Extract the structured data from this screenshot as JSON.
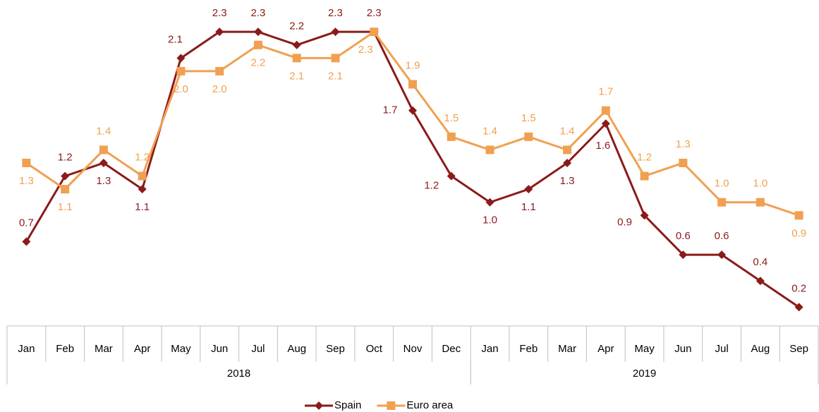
{
  "chart_data": {
    "type": "line",
    "categories": [
      "Jan",
      "Feb",
      "Mar",
      "Apr",
      "May",
      "Jun",
      "Jul",
      "Aug",
      "Sep",
      "Oct",
      "Nov",
      "Dec",
      "Jan",
      "Feb",
      "Mar",
      "Apr",
      "May",
      "Jun",
      "Jul",
      "Aug",
      "Sep"
    ],
    "groups": [
      {
        "label": "2018",
        "span": 12
      },
      {
        "label": "2019",
        "span": 9
      }
    ],
    "ylim": [
      0.1,
      2.5
    ],
    "series": [
      {
        "name": "Spain",
        "color": "#8b1a1a",
        "marker": "diamond",
        "values": [
          0.7,
          1.2,
          1.3,
          1.1,
          2.1,
          2.3,
          2.3,
          2.2,
          2.3,
          2.3,
          1.7,
          1.2,
          1.0,
          1.1,
          1.3,
          1.6,
          0.9,
          0.6,
          0.6,
          0.4,
          0.2
        ],
        "value_labels": [
          "0.7",
          "1.2",
          "1.3",
          "1.1",
          "2.1",
          "2.3",
          "2.3",
          "2.2",
          "2.3",
          "2.3",
          "1.7",
          "1.2",
          "1.0",
          "1.1",
          "1.3",
          "1.6",
          "0.9",
          "0.6",
          "0.6",
          "0.4",
          "0.2"
        ]
      },
      {
        "name": "Euro area",
        "color": "#f0a050",
        "marker": "square",
        "values": [
          1.3,
          1.1,
          1.4,
          1.2,
          2.0,
          2.0,
          2.2,
          2.1,
          2.1,
          2.3,
          1.9,
          1.5,
          1.4,
          1.5,
          1.4,
          1.7,
          1.2,
          1.3,
          1.0,
          1.0,
          0.9
        ],
        "value_labels": [
          "1.3",
          "1.1",
          "1.4",
          "1.2",
          "2.0",
          "2.0",
          "2.2",
          "2.1",
          "2.1",
          "2.3",
          "1.9",
          "1.5",
          "1.4",
          "1.5",
          "1.4",
          "1.7",
          "1.2",
          "1.3",
          "1.0",
          "1.0",
          "0.9"
        ]
      }
    ]
  }
}
